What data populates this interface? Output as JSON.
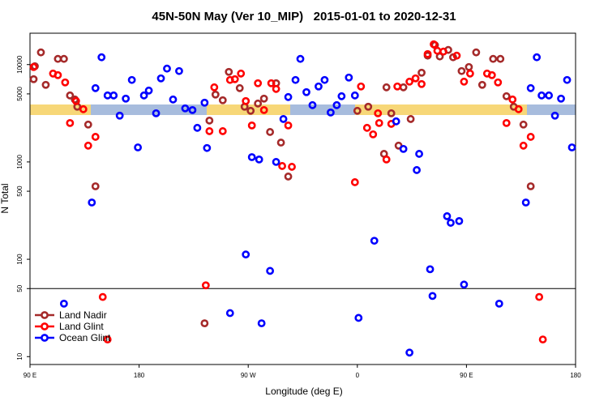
{
  "chart_data": {
    "type": "scatter",
    "title": "45N-50N May (Ver 10_MIP)   2015-01-01 to 2020-12-31",
    "x_label": "Longitude (deg E)",
    "y_label": "N Total",
    "log_y": true,
    "hline": 50,
    "legend": "bottom-left",
    "xlim": [
      90,
      540
    ],
    "xticks": [
      {
        "value": 90,
        "label": "90 E"
      },
      180,
      {
        "value": 270,
        "label": "90 W"
      },
      {
        "value": 360,
        "label": "0"
      },
      {
        "value": 450,
        "label": "90 E"
      },
      {
        "value": 540,
        "label": "180"
      }
    ],
    "ylim": [
      8.3,
      21000
    ],
    "yticks": [
      10,
      50,
      100,
      500,
      1000,
      5000,
      10000
    ],
    "series": [
      {
        "name": "Land Nadir",
        "color": "#a52a2a",
        "x": [
          93,
          94,
          99,
          103,
          113,
          118,
          123,
          127,
          129,
          138,
          144,
          234,
          238,
          243,
          249,
          254,
          263,
          267,
          272,
          278,
          283,
          288,
          293,
          297,
          303,
          360,
          369,
          382,
          384,
          388,
          394,
          398,
          404,
          413,
          418,
          424,
          428,
          435,
          439,
          446,
          452,
          458,
          463,
          472,
          478,
          483,
          489,
          497,
          503
        ],
        "values": [
          7080,
          9620,
          13340,
          6190,
          11440,
          11440,
          4820,
          4380,
          3690,
          2420,
          562,
          22,
          2660,
          4920,
          4300,
          8410,
          5730,
          3690,
          3350,
          3980,
          4470,
          2030,
          6430,
          1580,
          708,
          3350,
          3690,
          1210,
          5840,
          3160,
          1470,
          5840,
          2760,
          8250,
          12350,
          15850,
          12120,
          14130,
          11890,
          8580,
          9440,
          13340,
          6190,
          11440,
          11440,
          4730,
          3690,
          2420,
          562
        ]
      },
      {
        "name": "Land Glint",
        "color": "#ff0000",
        "x": [
          93,
          109,
          113,
          119,
          128,
          134,
          123,
          138,
          144,
          150,
          154,
          235,
          238,
          242,
          249,
          255,
          259,
          264,
          268,
          273,
          278,
          283,
          289,
          293,
          298,
          303,
          306,
          358,
          363,
          368,
          373,
          377,
          378,
          384,
          388,
          393,
          403,
          408,
          413,
          418,
          423,
          426,
          431,
          442,
          448,
          453,
          467,
          471,
          476,
          483,
          488,
          493,
          497,
          503,
          510,
          513
        ],
        "values": [
          9440,
          8090,
          7790,
          6560,
          4220,
          3480,
          2510,
          1470,
          1810,
          41,
          15,
          54,
          2070,
          5840,
          2070,
          6950,
          7080,
          8090,
          4220,
          2370,
          6430,
          3410,
          6430,
          5620,
          908,
          2370,
          891,
          619,
          5960,
          2240,
          1920,
          3160,
          2510,
          1060,
          2460,
          5960,
          6680,
          7220,
          6310,
          12830,
          16150,
          13860,
          13600,
          12350,
          6680,
          8090,
          8090,
          7790,
          6560,
          2510,
          4380,
          3480,
          1470,
          1810,
          41,
          15
        ]
      },
      {
        "name": "Ocean Glint",
        "color": "#0000ff",
        "x": [
          118,
          141,
          149,
          144,
          154,
          159,
          164,
          169,
          174,
          179,
          184,
          188,
          194,
          198,
          203,
          208,
          213,
          218,
          224,
          228,
          234,
          236,
          255,
          268,
          273,
          279,
          281,
          288,
          293,
          299,
          303,
          309,
          313,
          318,
          323,
          328,
          333,
          338,
          343,
          347,
          353,
          358,
          361,
          374,
          392,
          398,
          403,
          409,
          411,
          420,
          422,
          434,
          437,
          444,
          448,
          477,
          499,
          503,
          508,
          512,
          518,
          523,
          528,
          533,
          537
        ],
        "values": [
          35,
          383,
          11890,
          5730,
          4820,
          4820,
          2990,
          4470,
          6950,
          1410,
          4820,
          5410,
          3160,
          7220,
          9090,
          4380,
          8580,
          3550,
          3410,
          2240,
          4060,
          1390,
          28,
          112,
          1120,
          1060,
          22,
          76,
          1000,
          2760,
          4640,
          6950,
          11440,
          5210,
          3830,
          5960,
          6950,
          3220,
          3830,
          4730,
          7360,
          4820,
          25,
          155,
          2610,
          1360,
          11,
          825,
          1210,
          79,
          42,
          277,
          237,
          247,
          55,
          35,
          383,
          5730,
          11890,
          4820,
          4820,
          2990,
          4470,
          6950,
          1410
        ]
      }
    ]
  }
}
